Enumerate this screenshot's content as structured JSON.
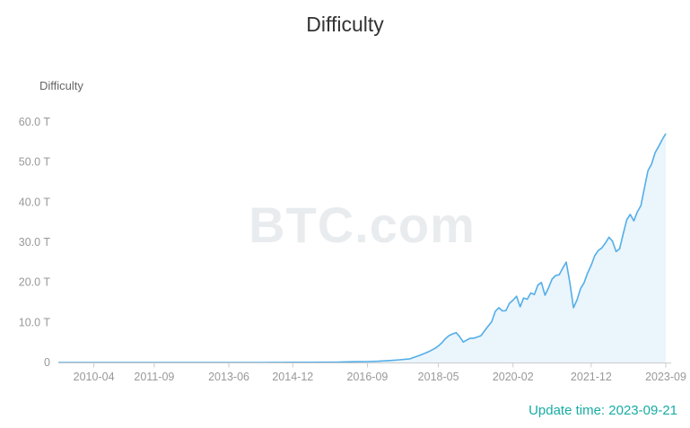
{
  "page": {
    "title": "Difficulty",
    "update_time": "Update time: 2023-09-21",
    "watermark": "BTC.com"
  },
  "colors": {
    "line": "#54aee8",
    "fill": "#eaf5fc",
    "axis": "#cccccc",
    "tick_text": "#999999",
    "title_text": "#333333",
    "y_axis_title_text": "#666666",
    "update_time_text": "#17ada4",
    "watermark_text": "#e9ecef"
  },
  "chart_data": {
    "type": "area",
    "title": "Difficulty",
    "y_axis_title": "Difficulty",
    "unit": "T",
    "grid": false,
    "legend": false,
    "ylim": [
      0,
      60
    ],
    "y_tick_values": [
      0,
      10,
      20,
      30,
      40,
      50,
      60
    ],
    "y_tick_labels": [
      "0",
      "10.0 T",
      "20.0 T",
      "30.0 T",
      "40.0 T",
      "50.0 T",
      "60.0 T"
    ],
    "x_ticks": [
      "2010-04",
      "2011-09",
      "2013-06",
      "2014-12",
      "2016-09",
      "2018-05",
      "2020-02",
      "2021-12",
      "2023-09"
    ],
    "x": [
      "2009-06",
      "2010-01",
      "2010-07",
      "2011-01",
      "2011-06",
      "2011-09",
      "2012-03",
      "2012-09",
      "2013-03",
      "2013-06",
      "2013-09",
      "2013-12",
      "2014-03",
      "2014-06",
      "2014-09",
      "2014-12",
      "2015-03",
      "2015-06",
      "2015-09",
      "2015-12",
      "2016-03",
      "2016-06",
      "2016-09",
      "2016-12",
      "2017-03",
      "2017-06",
      "2017-09",
      "2017-12",
      "2018-02",
      "2018-04",
      "2018-05",
      "2018-06",
      "2018-07",
      "2018-08",
      "2018-09",
      "2018-10",
      "2018-11",
      "2018-12",
      "2019-01",
      "2019-02",
      "2019-03",
      "2019-04",
      "2019-05",
      "2019-06",
      "2019-07",
      "2019-08",
      "2019-09",
      "2019-10",
      "2019-11",
      "2019-12",
      "2020-01",
      "2020-02",
      "2020-03",
      "2020-04",
      "2020-05",
      "2020-06",
      "2020-07",
      "2020-08",
      "2020-09",
      "2020-10",
      "2020-11",
      "2020-12",
      "2021-01",
      "2021-02",
      "2021-03",
      "2021-04",
      "2021-05",
      "2021-06",
      "2021-07",
      "2021-08",
      "2021-09",
      "2021-10",
      "2021-11",
      "2021-12",
      "2022-01",
      "2022-02",
      "2022-03",
      "2022-04",
      "2022-05",
      "2022-06",
      "2022-07",
      "2022-08",
      "2022-09",
      "2022-10",
      "2022-11",
      "2022-12",
      "2023-01",
      "2023-02",
      "2023-03",
      "2023-04",
      "2023-05",
      "2023-06",
      "2023-07",
      "2023-08",
      "2023-09"
    ],
    "values": [
      0,
      0,
      0,
      0,
      1.6e-06,
      1.7e-06,
      1.3e-06,
      2.9e-06,
      4.6e-06,
      1.95e-05,
      8.7e-05,
      0.0007,
      0.0043,
      0.0135,
      0.0275,
      0.04,
      0.0467,
      0.0484,
      0.0593,
      0.0722,
      0.1659,
      0.1997,
      0.2254,
      0.3103,
      0.4607,
      0.6787,
      0.9226,
      1.873,
      2.604,
      3.511,
      4.143,
      4.94,
      5.949,
      6.727,
      7.152,
      7.454,
      6.4,
      5.106,
      5.618,
      6.061,
      6.071,
      6.379,
      6.702,
      7.934,
      9.064,
      10.18,
      12.76,
      13.69,
      12.87,
      12.95,
      14.78,
      15.55,
      16.55,
      13.91,
      16.1,
      15.78,
      17.35,
      16.95,
      19.31,
      19.97,
      16.79,
      18.67,
      20.82,
      21.72,
      21.87,
      23.58,
      25.05,
      19.93,
      13.67,
      15.56,
      18.42,
      19.89,
      22.34,
      24.27,
      26.64,
      27.97,
      28.59,
      29.79,
      31.25,
      30.28,
      27.69,
      28.35,
      32.05,
      35.61,
      36.95,
      35.36,
      37.59,
      39.16,
      43.55,
      47.89,
      49.55,
      52.35,
      53.91,
      55.62,
      57.12
    ]
  }
}
